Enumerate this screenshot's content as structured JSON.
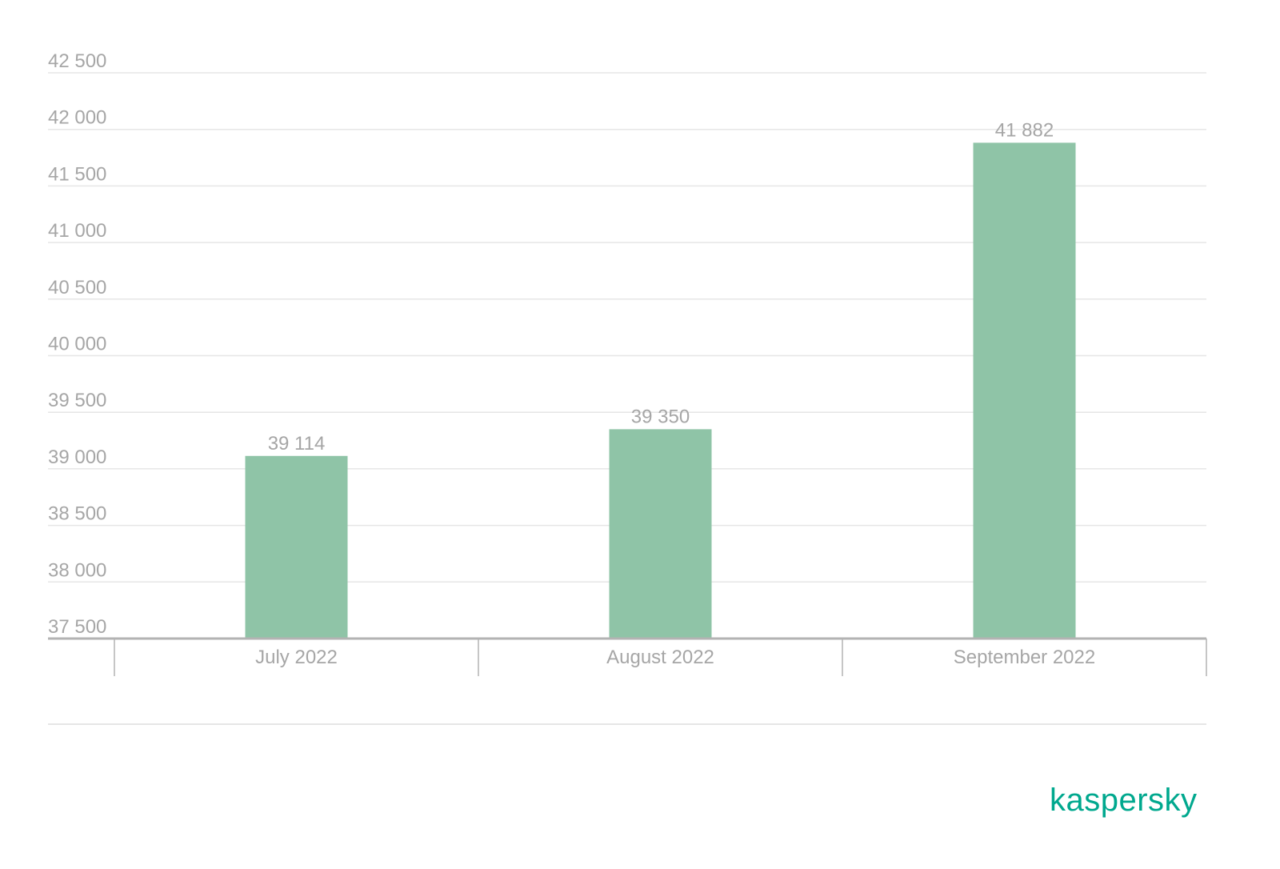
{
  "chart_data": {
    "type": "bar",
    "categories": [
      "July 2022",
      "August 2022",
      "September 2022"
    ],
    "values": [
      39114,
      39350,
      41882
    ],
    "value_labels": [
      "39 114",
      "39 350",
      "41 882"
    ],
    "ylim": [
      37500,
      42500
    ],
    "yticks": [
      37500,
      38000,
      38500,
      39000,
      39500,
      40000,
      40500,
      41000,
      41500,
      42000,
      42500
    ],
    "ytick_labels": [
      "37 500",
      "38 000",
      "38 500",
      "39 000",
      "39 500",
      "40 000",
      "40 500",
      "41 000",
      "41 500",
      "42 000",
      "42 500"
    ],
    "grid": true,
    "legend": "none",
    "bar_color": "#8fc4a7",
    "text_color": "#a6a6a6",
    "grid_color": "#e6e6e6",
    "axis_color": "#b3b3b3"
  },
  "brand": {
    "logo_text": "kaspersky",
    "logo_color": "#00a88e"
  }
}
